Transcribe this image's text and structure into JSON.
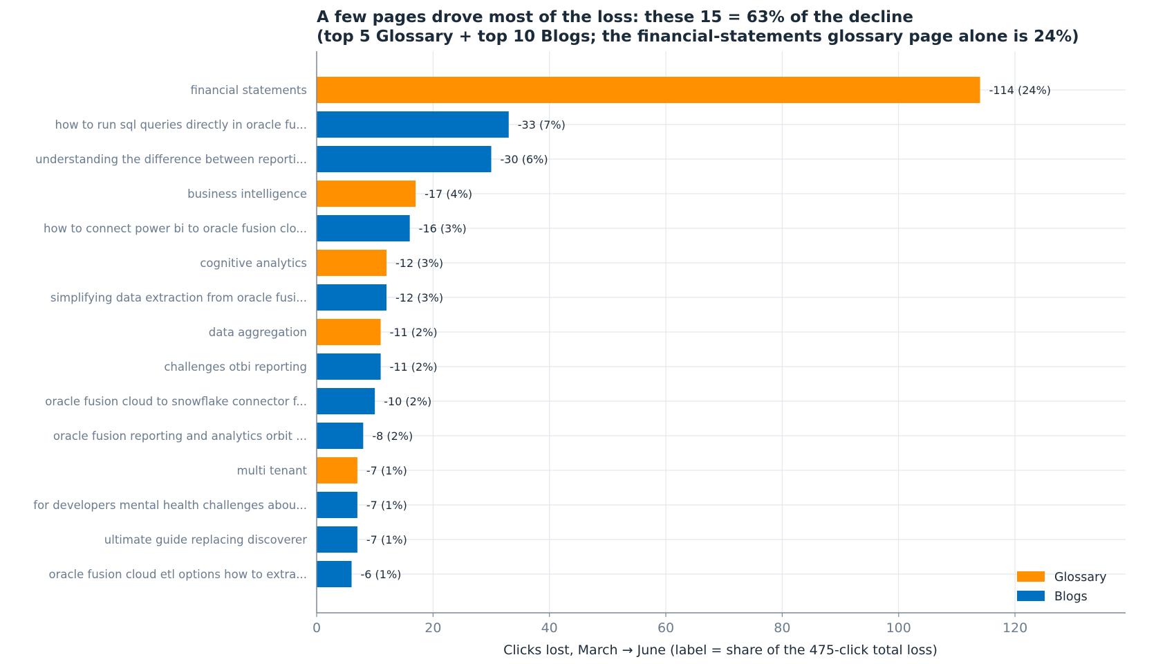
{
  "chart_data": {
    "type": "bar",
    "orientation": "horizontal",
    "title": "A few pages drove most of the loss: these 15 = 63% of the decline",
    "subtitle": "(top 5 Glossary + top 10 Blogs; the financial-statements glossary page alone is 24%)",
    "xlabel": "Clicks lost, March → June (label = share of the 475-click total loss)",
    "ylabel": "",
    "xlim": [
      0,
      139
    ],
    "xticks": [
      0,
      20,
      40,
      60,
      80,
      100,
      120
    ],
    "grid": true,
    "legend_position": "bottom-right",
    "legend": [
      {
        "name": "Glossary",
        "color": "#ff9100"
      },
      {
        "name": "Blogs",
        "color": "#0070c0"
      }
    ],
    "categories": [
      "financial statements",
      "how to run sql queries directly in oracle fu...",
      "understanding the difference between reporti...",
      "business intelligence",
      "how to connect power bi to oracle fusion clo...",
      "cognitive analytics",
      "simplifying data extraction from oracle fusi...",
      "data aggregation",
      "challenges otbi reporting",
      "oracle fusion cloud to snowflake connector f...",
      "oracle fusion reporting and analytics orbit ...",
      "multi tenant",
      "for developers mental health challenges abou...",
      "ultimate guide replacing discoverer",
      "oracle fusion cloud etl options how to extra..."
    ],
    "values": [
      114,
      33,
      30,
      17,
      16,
      12,
      12,
      11,
      11,
      10,
      8,
      7,
      7,
      7,
      6
    ],
    "groups": [
      "Glossary",
      "Blogs",
      "Blogs",
      "Glossary",
      "Blogs",
      "Glossary",
      "Blogs",
      "Glossary",
      "Blogs",
      "Blogs",
      "Blogs",
      "Glossary",
      "Blogs",
      "Blogs",
      "Blogs"
    ],
    "data_labels": [
      "-114  (24%)",
      "-33  (7%)",
      "-30  (6%)",
      "-17  (4%)",
      "-16  (3%)",
      "-12  (3%)",
      "-12  (3%)",
      "-11  (2%)",
      "-11  (2%)",
      "-10  (2%)",
      "-8  (2%)",
      "-7  (1%)",
      "-7  (1%)",
      "-7  (1%)",
      "-6  (1%)"
    ]
  },
  "colors": {
    "title": "#1c2b3a",
    "tick_label": "#6b7c8f",
    "axis": "#7a8899",
    "grid": "#e3e8ee",
    "data_label": "#1c2b3a"
  }
}
